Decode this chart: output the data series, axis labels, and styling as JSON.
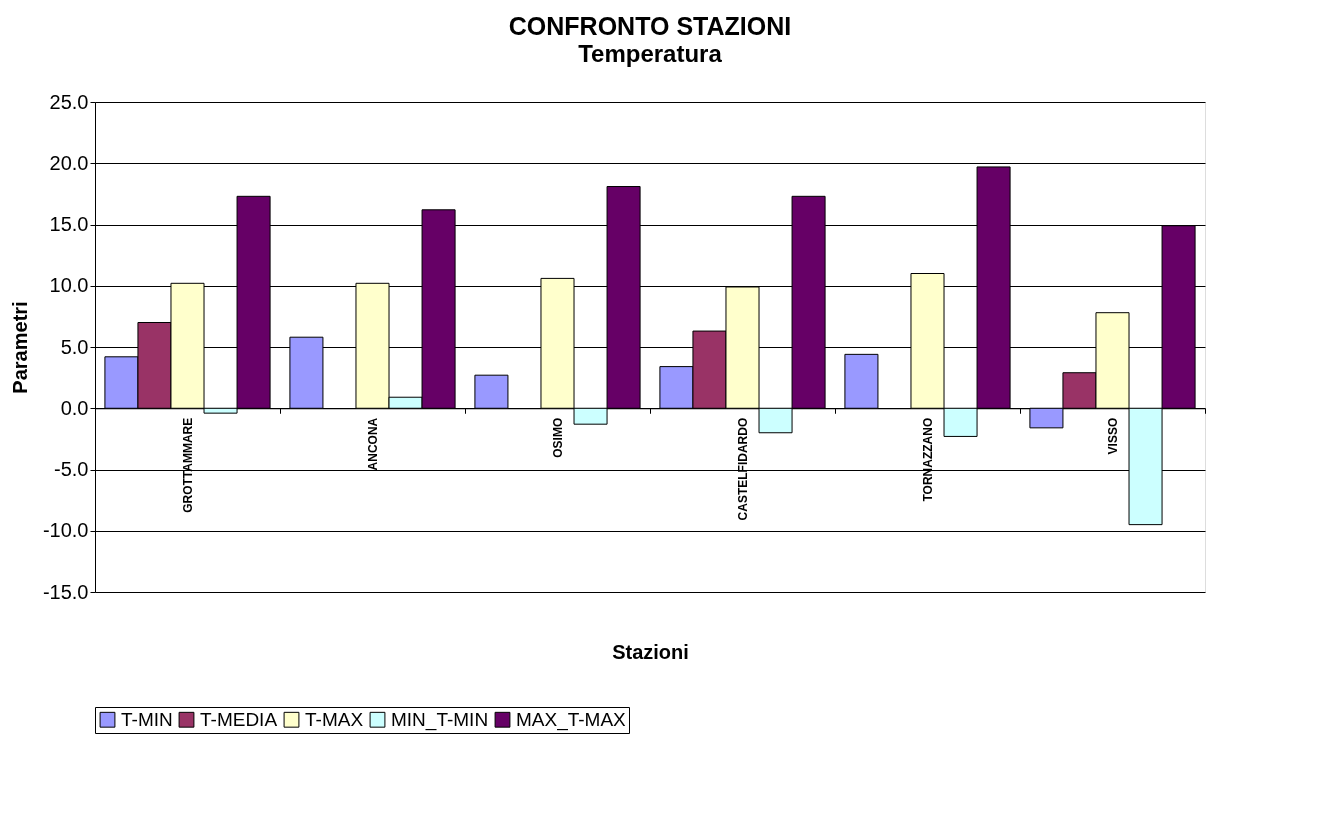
{
  "chart_data": {
    "type": "bar",
    "title": "CONFRONTO STAZIONI",
    "subtitle": "Temperatura",
    "xlabel": "Stazioni",
    "ylabel": "Parametri",
    "categories": [
      "GROTTAMMARE",
      "ANCONA",
      "OSIMO",
      "CASTELFIDARDO",
      "TORNAZZANO",
      "VISSO"
    ],
    "series": [
      {
        "name": "T-MIN",
        "color": "#9999ff",
        "values": [
          4.2,
          5.8,
          2.7,
          3.4,
          4.4,
          -1.6
        ]
      },
      {
        "name": "T-MEDIA",
        "color": "#993366",
        "values": [
          7.0,
          null,
          null,
          6.3,
          null,
          2.9
        ]
      },
      {
        "name": "T-MAX",
        "color": "#ffffcc",
        "values": [
          10.2,
          10.2,
          10.6,
          9.9,
          11.0,
          7.8
        ]
      },
      {
        "name": "MIN_T-MIN",
        "color": "#ccffff",
        "values": [
          -0.4,
          0.9,
          -1.3,
          -2.0,
          -2.3,
          -9.5
        ]
      },
      {
        "name": "MAX_T-MAX",
        "color": "#660066",
        "values": [
          17.3,
          16.2,
          18.1,
          17.3,
          19.7,
          14.9
        ]
      }
    ],
    "ylim": [
      -15,
      25
    ],
    "yticks": [
      {
        "value": -15,
        "label": "-15.0"
      },
      {
        "value": -10,
        "label": "-10.0"
      },
      {
        "value": -5,
        "label": "-5.0"
      },
      {
        "value": 0,
        "label": "0.0"
      },
      {
        "value": 5,
        "label": "5.0"
      },
      {
        "value": 10,
        "label": "10.0"
      },
      {
        "value": 15,
        "label": "15.0"
      },
      {
        "value": 20,
        "label": "20.0"
      },
      {
        "value": 25,
        "label": "25.0"
      }
    ],
    "grid": "y",
    "legend": "bottom"
  }
}
